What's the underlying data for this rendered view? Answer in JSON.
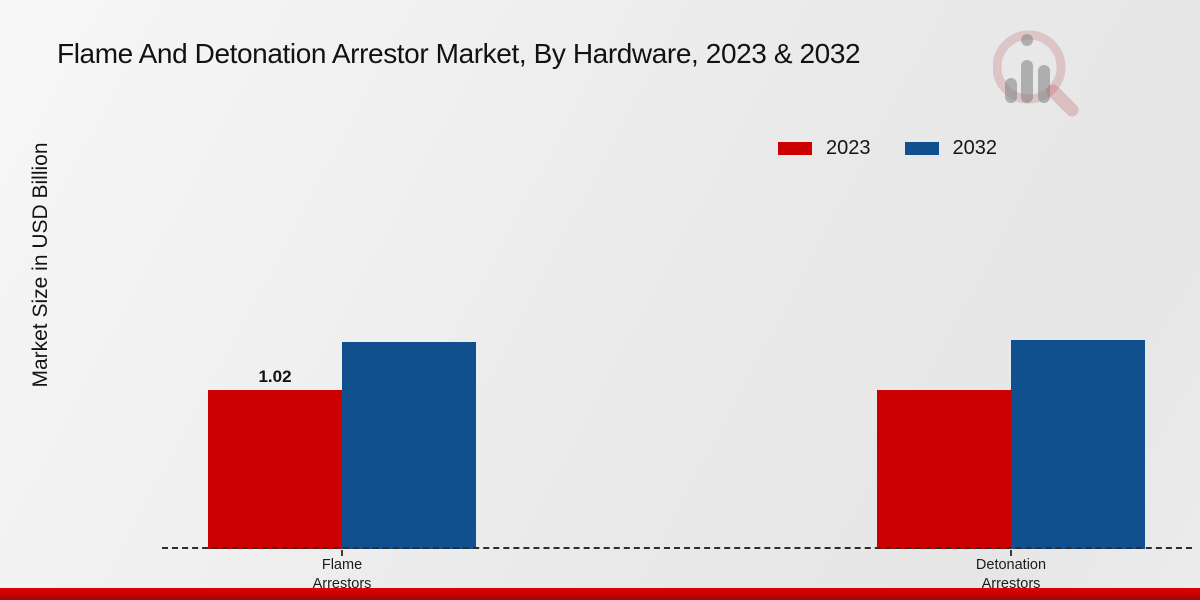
{
  "title": "Flame And Detonation Arrestor Market, By Hardware, 2023 & 2032",
  "y_axis_label": "Market Size in USD Billion",
  "legend": {
    "position": "top-right",
    "items": [
      {
        "label": "2023",
        "color": "#cc0000"
      },
      {
        "label": "2032",
        "color": "#10508e"
      }
    ]
  },
  "chart_data": {
    "type": "bar",
    "title": "Flame And Detonation Arrestor Market, By Hardware, 2023 & 2032",
    "xlabel": "",
    "ylabel": "Market Size in USD Billion",
    "categories": [
      "Flame Arrestors",
      "Detonation Arrestors"
    ],
    "category_label_lines": [
      [
        "Flame",
        "Arrestors"
      ],
      [
        "Detonation",
        "Arrestors"
      ]
    ],
    "series": [
      {
        "name": "2023",
        "color": "#cc0000",
        "values": [
          1.02,
          1.02
        ],
        "bar_labels": [
          "1.02",
          ""
        ]
      },
      {
        "name": "2032",
        "color": "#10508e",
        "values": [
          1.33,
          1.34
        ],
        "bar_labels": [
          "",
          ""
        ]
      }
    ],
    "ylim": [
      0,
      3
    ],
    "grid": false,
    "y_axis_ticks_visible": false,
    "baseline_style": "dashed",
    "legend_position": "top-right"
  },
  "watermark": {
    "icon": "magnifier-bar-chart-logo",
    "ring_color": "#b84b4b",
    "bars_color": "#7d7d84"
  },
  "footer": {
    "stripe_color": "#cc0000"
  }
}
